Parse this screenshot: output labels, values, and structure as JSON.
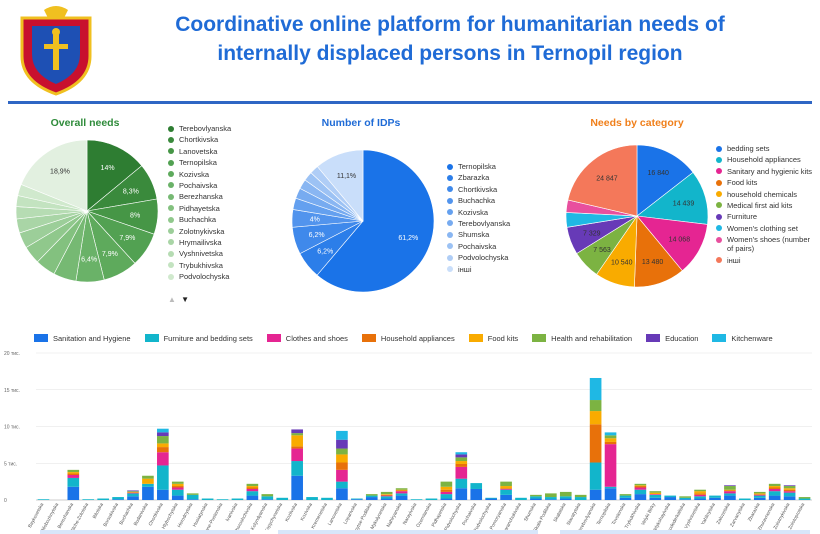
{
  "header": {
    "title_line1": "Coordinative online platform for humanitarian needs of",
    "title_line2": "internally displaced persons in Ternopil region"
  },
  "colors": {
    "title": "#1f6bd6",
    "rule": "#2f66c4"
  },
  "overall_needs": {
    "title": "Overall needs",
    "title_color": "#2e8b3a",
    "legend": [
      "Terebovlyanska",
      "Chortkivska",
      "Lanovetska",
      "Ternopilska",
      "Kozivska",
      "Pochaivska",
      "Berezhanska",
      "Pidhayetska",
      "Buchachka",
      "Zolotnykivska",
      "Hrymailivska",
      "Vyshnivetska",
      "Trybukhivska",
      "Podvolochyska"
    ],
    "legend_colors": [
      "#2e7d32",
      "#3a8a3c",
      "#469646",
      "#52a152",
      "#5eaa5c",
      "#6ab268",
      "#76b973",
      "#83c17f",
      "#90c88c",
      "#9cce99",
      "#a9d5a6",
      "#b6dcb3",
      "#c3e3c0",
      "#d0e9cd"
    ],
    "pager_up": "▲",
    "pager_down": "▼"
  },
  "number_of_idps": {
    "title": "Number of IDPs",
    "title_color": "#1f6bd6",
    "legend": [
      "Ternopilska",
      "Zbarazka",
      "Chortkivska",
      "Buchachka",
      "Kozivska",
      "Terebovlyanska",
      "Shumska",
      "Pochaivska",
      "Podvolochyska",
      "інші"
    ],
    "legend_colors": [
      "#1a73e8",
      "#2c7ee9",
      "#3f89eb",
      "#5294ed",
      "#64a0ef",
      "#77abf0",
      "#89b6f2",
      "#9cc2f4",
      "#afcdf6",
      "#c9defa"
    ]
  },
  "needs_by_category": {
    "title": "Needs by category",
    "title_color": "#f07f1a",
    "legend": [
      "bedding sets",
      "Household appliances",
      "Sanitary and hygienic kits",
      "Food kits",
      "household chemicals",
      "Medical first aid kits",
      "Furniture",
      "Women's clothing set",
      "Women's shoes (number of pairs)",
      "інші"
    ],
    "legend_colors": [
      "#1a73e8",
      "#12b5cb",
      "#e52592",
      "#e8710a",
      "#f9ab00",
      "#7cb342",
      "#673ab7",
      "#1fb8e4",
      "#e84f9e",
      "#f4785a"
    ]
  },
  "bar_legend": {
    "items": [
      "Sanitation and Hygiene",
      "Furniture and bedding sets",
      "Clothes and shoes",
      "Household appliances",
      "Food kits",
      "Health and rehabilitation",
      "Education",
      "Kitchenware"
    ],
    "colors": [
      "#1a73e8",
      "#12b5cb",
      "#e52592",
      "#e8710a",
      "#f9ab00",
      "#7cb342",
      "#673ab7",
      "#1fb8e4"
    ]
  },
  "chart_data": [
    {
      "type": "pie",
      "title": "Overall needs",
      "categories": [
        "Terebovlyanska",
        "Chortkivska",
        "Lanovetska",
        "Ternopilska",
        "Kozivska",
        "Pochaivska",
        "Berezhanska",
        "Pidhayetska",
        "Buchachka",
        "Zolotnykivska",
        "Hrymailivska",
        "Vyshnivetska",
        "Trybukhivska",
        "Podvolochyska",
        "other"
      ],
      "values": [
        14,
        8.3,
        8,
        7.9,
        7.9,
        6.4,
        5.2,
        4.6,
        4.1,
        3.6,
        3.2,
        2.8,
        2.5,
        2.6,
        18.9
      ],
      "slice_labels": [
        "14%",
        "8,3%",
        "8%",
        "7,9%",
        "7,9%",
        "6,4%",
        "",
        "",
        "",
        "",
        "",
        "",
        "",
        "",
        "18,9%"
      ]
    },
    {
      "type": "pie",
      "title": "Number of IDPs",
      "categories": [
        "Ternopilska",
        "Zbarazka",
        "Chortkivska",
        "Buchachka",
        "Kozivska",
        "Terebovlyanska",
        "Shumska",
        "Pochaivska",
        "Podvolochyska",
        "інші"
      ],
      "values": [
        61.2,
        6.2,
        6.2,
        4.0,
        2.6,
        2.4,
        2.2,
        2.1,
        2.0,
        11.1
      ],
      "slice_labels": [
        "61,2%",
        "6,2%",
        "6,2%",
        "4%",
        "",
        "",
        "",
        "",
        "",
        "11,1%"
      ]
    },
    {
      "type": "pie",
      "title": "Needs by category",
      "categories": [
        "bedding sets",
        "Household appliances",
        "Sanitary and hygienic kits",
        "Food kits",
        "household chemicals",
        "Medical first aid kits",
        "Furniture",
        "Women's clothing set",
        "Women's shoes (number of pairs)",
        "інші"
      ],
      "values": [
        16840,
        14439,
        14068,
        13480,
        10540,
        7563,
        7329,
        3900,
        3300,
        24847
      ],
      "slice_labels": [
        "16 840",
        "14 439",
        "14 068",
        "13 480",
        "10 540",
        "7 563",
        "7 329",
        "",
        "",
        "24 847"
      ]
    },
    {
      "type": "bar",
      "stacked": true,
      "ylim": [
        0,
        20000
      ],
      "yticks": [
        "0",
        "5 тис.",
        "10 тис.",
        "15 тис.",
        "20 тис."
      ],
      "grid": true,
      "categories": [
        "Baykovetska",
        "Bilobozhnytska",
        "Berezhanska",
        "Bilche-Zolotska",
        "Bilotska",
        "Borsukivska",
        "Buchachka",
        "Budanivska",
        "Chortkivska",
        "Hlybochytska",
        "Horodnytska",
        "Husiatynska",
        "Ivane-Pustenska",
        "Ivanivska",
        "Khoroshchivska",
        "Kolyndyanska",
        "Kopychynetska",
        "Kozlivska",
        "Kozivska",
        "Kremenetska",
        "Lanovetska",
        "Loparivska",
        "Melnytse-Podilska",
        "Mykulynetska",
        "Nahiryanska",
        "Narayivska",
        "Ozernianska",
        "Pidhayetska",
        "Pidvolochyska",
        "Pochaivska",
        "Podvolochyska",
        "Pomoryanska",
        "Saranchukivska",
        "Shumska",
        "Skala-Podilska",
        "Skalatska",
        "Slavatytska",
        "Terebovlyanska",
        "Ternopilska",
        "Tovstenska",
        "Trybukhivska",
        "Velyki Birky",
        "Velykohayivska",
        "Velykodederkaltska",
        "Vyshnivetska",
        "Yahilnytska",
        "Zalozetska",
        "Zarvanytska",
        "Zbarazka",
        "Zhuravnenska",
        "Zolotnykivska",
        "Zolotoprotska"
      ],
      "series": [
        {
          "name": "Sanitation and Hygiene",
          "values": [
            0,
            0,
            1800,
            0,
            0,
            100,
            500,
            1800,
            1400,
            600,
            100,
            0,
            0,
            0,
            600,
            100,
            0,
            3300,
            0,
            0,
            1600,
            100,
            400,
            200,
            600,
            0,
            0,
            200,
            1600,
            1500,
            200,
            700,
            0,
            200,
            100,
            200,
            0,
            1400,
            1600,
            300,
            800,
            300,
            400,
            100,
            200,
            300,
            600,
            0,
            300,
            600,
            500,
            0
          ]
        },
        {
          "name": "Furniture and bedding sets",
          "values": [
            100,
            0,
            1200,
            100,
            200,
            300,
            400,
            400,
            3300,
            800,
            600,
            200,
            100,
            200,
            600,
            400,
            300,
            2000,
            400,
            300,
            900,
            100,
            200,
            300,
            300,
            100,
            200,
            600,
            1300,
            800,
            100,
            700,
            300,
            300,
            300,
            300,
            400,
            3700,
            200,
            300,
            600,
            400,
            200,
            200,
            300,
            300,
            300,
            200,
            300,
            600,
            500,
            200
          ]
        },
        {
          "name": "Clothes and shoes",
          "values": [
            0,
            0,
            400,
            0,
            0,
            0,
            100,
            0,
            1800,
            300,
            0,
            0,
            0,
            0,
            300,
            0,
            0,
            1700,
            0,
            0,
            1600,
            0,
            0,
            100,
            300,
            0,
            0,
            300,
            1600,
            0,
            0,
            100,
            0,
            0,
            0,
            0,
            0,
            0,
            5800,
            0,
            300,
            100,
            0,
            0,
            200,
            0,
            300,
            0,
            100,
            300,
            200,
            0
          ]
        },
        {
          "name": "Household appliances",
          "values": [
            0,
            0,
            200,
            0,
            0,
            0,
            0,
            0,
            700,
            200,
            0,
            0,
            0,
            0,
            200,
            0,
            0,
            300,
            0,
            0,
            1000,
            0,
            0,
            100,
            100,
            0,
            0,
            300,
            400,
            0,
            0,
            100,
            0,
            0,
            0,
            0,
            0,
            5200,
            300,
            0,
            200,
            0,
            0,
            0,
            200,
            0,
            100,
            0,
            100,
            200,
            200,
            0
          ]
        },
        {
          "name": "Food kits",
          "values": [
            0,
            0,
            200,
            0,
            0,
            0,
            100,
            700,
            500,
            300,
            0,
            0,
            0,
            0,
            200,
            0,
            0,
            1500,
            0,
            0,
            1100,
            0,
            0,
            100,
            100,
            0,
            0,
            400,
            400,
            0,
            0,
            300,
            0,
            0,
            0,
            0,
            0,
            1800,
            500,
            0,
            100,
            200,
            0,
            0,
            300,
            0,
            100,
            0,
            100,
            200,
            200,
            0
          ]
        },
        {
          "name": "Health and rehabilitation",
          "values": [
            0,
            0,
            300,
            0,
            0,
            0,
            100,
            400,
            1000,
            300,
            200,
            0,
            0,
            0,
            300,
            300,
            0,
            300,
            0,
            0,
            800,
            0,
            200,
            300,
            200,
            0,
            0,
            700,
            500,
            0,
            0,
            600,
            0,
            200,
            500,
            600,
            300,
            1500,
            400,
            200,
            200,
            200,
            0,
            200,
            200,
            0,
            500,
            0,
            200,
            300,
            300,
            200
          ]
        },
        {
          "name": "Education",
          "values": [
            0,
            0,
            0,
            0,
            0,
            0,
            100,
            0,
            500,
            0,
            0,
            0,
            0,
            0,
            0,
            0,
            0,
            500,
            0,
            0,
            1200,
            0,
            0,
            0,
            0,
            0,
            0,
            0,
            400,
            0,
            0,
            0,
            0,
            0,
            0,
            0,
            0,
            0,
            0,
            0,
            0,
            0,
            0,
            0,
            0,
            0,
            100,
            0,
            0,
            0,
            100,
            0
          ]
        },
        {
          "name": "Kitchenware",
          "values": [
            0,
            0,
            0,
            0,
            0,
            0,
            0,
            0,
            500,
            0,
            0,
            0,
            0,
            0,
            0,
            0,
            0,
            0,
            0,
            0,
            1200,
            0,
            0,
            0,
            0,
            0,
            0,
            0,
            300,
            0,
            0,
            0,
            0,
            0,
            0,
            0,
            0,
            3000,
            400,
            0,
            0,
            0,
            0,
            0,
            0,
            0,
            0,
            0,
            0,
            0,
            0,
            0
          ]
        }
      ]
    }
  ]
}
